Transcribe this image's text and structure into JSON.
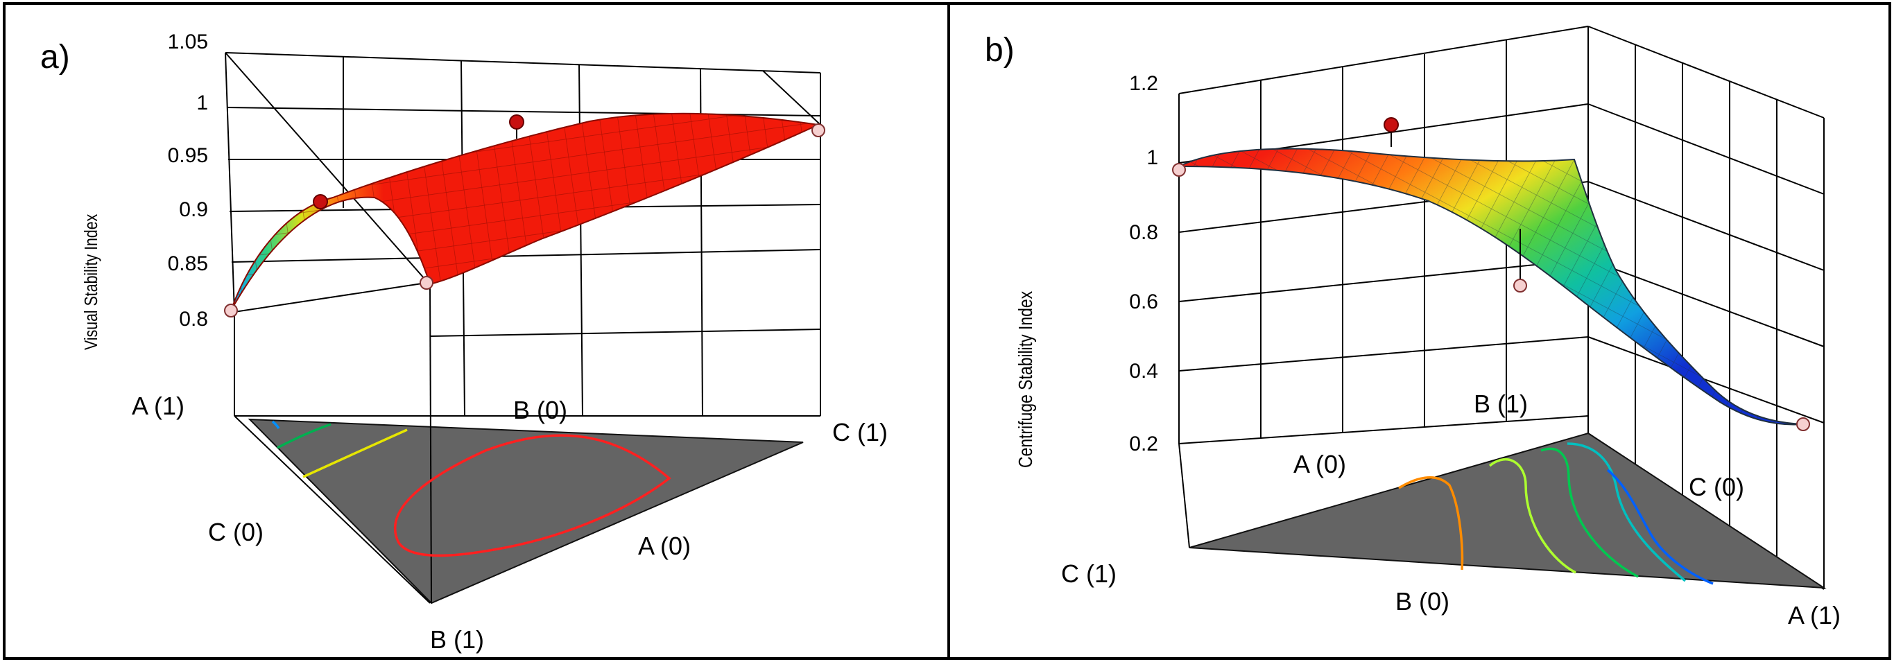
{
  "chart_data": [
    {
      "type": "surface3d",
      "panel_label": "a)",
      "zlabel": "Visual Stability Index",
      "zticks": [
        "0.8",
        "0.85",
        "0.9",
        "0.95",
        "1",
        "1.05"
      ],
      "zlim": [
        0.8,
        1.05
      ],
      "vertex_labels": [
        "A (1)",
        "B (0)",
        "C (1)",
        "C (0)",
        "A (0)",
        "B (1)"
      ],
      "design_points": [
        0.82,
        0.91,
        0.98,
        0.84,
        0.98
      ],
      "colors": {
        "surface": "#f21a0a",
        "base": "#646464",
        "contours": [
          "#0070ff",
          "#00b050",
          "#e6e600",
          "#ff2020"
        ]
      }
    },
    {
      "type": "surface3d",
      "panel_label": "b)",
      "zlabel": "Centrifuge Stability Index",
      "zticks": [
        "0.2",
        "0.4",
        "0.6",
        "0.8",
        "1",
        "1.2"
      ],
      "zlim": [
        0.2,
        1.2
      ],
      "vertex_labels": [
        "B (1)",
        "A (0)",
        "C (0)",
        "C (1)",
        "B (0)",
        "A (1)"
      ],
      "design_points": [
        0.97,
        1.05,
        0.55,
        0.28
      ],
      "colors": {
        "base": "#646464",
        "contours": [
          "#ff8c00",
          "#adff2f",
          "#00c850",
          "#00c0c0",
          "#0060ff"
        ]
      }
    }
  ]
}
